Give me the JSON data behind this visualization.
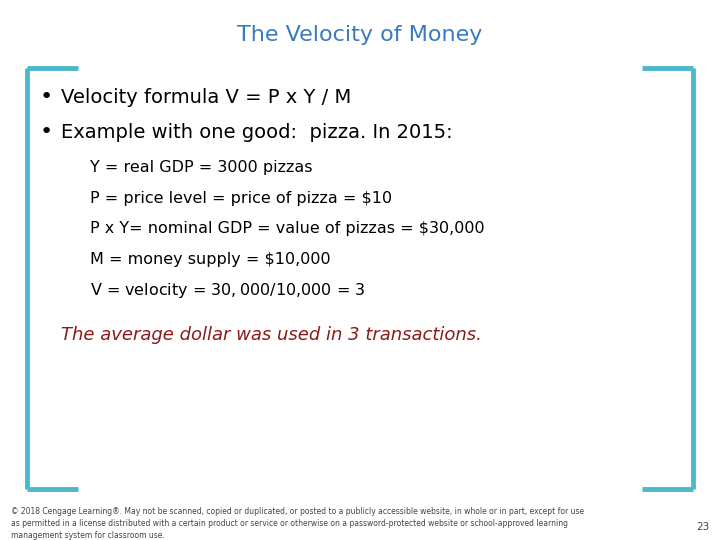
{
  "title": "The Velocity of Money",
  "title_color": "#3a7abf",
  "title_fontsize": 16,
  "bg_color": "#ffffff",
  "border_color": "#4db8cc",
  "bullet1": "Velocity formula V = P x Y / M",
  "bullet2": "Example with one good:  pizza. In 2015:",
  "bullet_fontsize": 14,
  "bullet_color": "#000000",
  "sub_lines": [
    "Y = real GDP = 3000 pizzas",
    "P = price level = price of pizza = $10",
    "P x Y= nominal GDP = value of pizzas = $30,000",
    "M = money supply = $10,000",
    "V = velocity = $30,000/$10,000 = 3"
  ],
  "sub_fontsize": 11.5,
  "sub_color": "#000000",
  "italic_line": "The average dollar was used in 3 transactions.",
  "italic_color": "#8b1a1a",
  "italic_fontsize": 13,
  "footer_text": "© 2018 Cengage Learning®. May not be scanned, copied or duplicated, or posted to a publicly accessible website, in whole or in part, except for use\nas permitted in a license distributed with a certain product or service or otherwise on a password-protected website or school-approved learning\nmanagement system for classroom use.",
  "footer_fontsize": 5.5,
  "footer_color": "#444444",
  "page_number": "23",
  "border_lw": 3.5,
  "bracket_horiz_extent": 0.07
}
